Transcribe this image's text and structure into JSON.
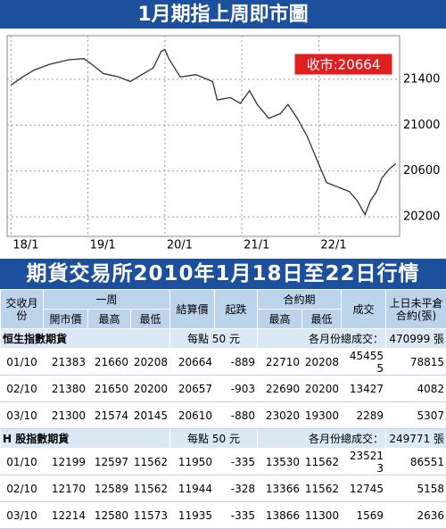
{
  "chart_data": {
    "type": "line",
    "title": "1月期指上周即市圖",
    "annotation": "收市:20664",
    "color": "#333333",
    "grid": true,
    "x": [
      0.0,
      0.15,
      0.3,
      0.5,
      0.75,
      0.95,
      1.05,
      1.2,
      1.4,
      1.55,
      1.7,
      1.85,
      1.95,
      2.0,
      2.05,
      2.2,
      2.4,
      2.55,
      2.62,
      2.68,
      2.85,
      2.98,
      3.1,
      3.2,
      3.35,
      3.5,
      3.6,
      3.72,
      3.85,
      3.95,
      4.1,
      4.25,
      4.4,
      4.5,
      4.6,
      4.67,
      4.75,
      4.82,
      4.92,
      5.0
    ],
    "values": [
      21350,
      21420,
      21480,
      21530,
      21570,
      21580,
      21530,
      21450,
      21420,
      21380,
      21440,
      21500,
      21640,
      21660,
      21580,
      21420,
      21440,
      21400,
      21380,
      21220,
      21240,
      21190,
      21300,
      21180,
      21060,
      21100,
      21180,
      21060,
      20900,
      20740,
      20500,
      20460,
      20420,
      20340,
      20220,
      20340,
      20420,
      20540,
      20620,
      20664
    ],
    "xlim": [
      -0.05,
      5.05
    ],
    "xticks": [
      {
        "value": 0,
        "label": "18/1"
      },
      {
        "value": 1,
        "label": "19/1"
      },
      {
        "value": 2,
        "label": "20/1"
      },
      {
        "value": 3,
        "label": "21/1"
      },
      {
        "value": 4,
        "label": "22/1"
      }
    ],
    "ylim": [
      20030,
      21780
    ],
    "yticks": [
      20200,
      20600,
      21000,
      21400
    ]
  },
  "table": {
    "title": "期貨交易所2010年1月18日至22日行情",
    "header_top": [
      "交收月份",
      "一周",
      "結算價",
      "起跌",
      "合約期",
      "成交",
      "上日未平倉合約(張)"
    ],
    "header_sub": [
      "開市價",
      "最高",
      "最低",
      "最高",
      "最低"
    ],
    "sections": [
      {
        "name": "恒生指數期貨",
        "unit": "每點 50 元",
        "total_label": "各月份總成交：",
        "total": "470999 張",
        "rows": [
          [
            "01/10",
            21383,
            21660,
            20208,
            20664,
            -889,
            22710,
            20208,
            454555,
            78815
          ],
          [
            "02/10",
            21380,
            21650,
            20200,
            20657,
            -903,
            22690,
            20200,
            13427,
            4082
          ],
          [
            "03/10",
            21300,
            21574,
            20145,
            20610,
            -880,
            23020,
            19300,
            2289,
            5307
          ]
        ]
      },
      {
        "name": "H 股指數期貨",
        "unit": "每點 50 元",
        "total_label": "各月份總成交：",
        "total": "249771 張",
        "rows": [
          [
            "01/10",
            12199,
            12597,
            11562,
            11950,
            -335,
            13530,
            11562,
            235213,
            86551
          ],
          [
            "02/10",
            12170,
            12589,
            11562,
            11944,
            -328,
            13366,
            11562,
            12745,
            5158
          ],
          [
            "03/10",
            12214,
            12580,
            11573,
            11935,
            -335,
            13866,
            11300,
            1569,
            2636
          ]
        ]
      }
    ]
  }
}
